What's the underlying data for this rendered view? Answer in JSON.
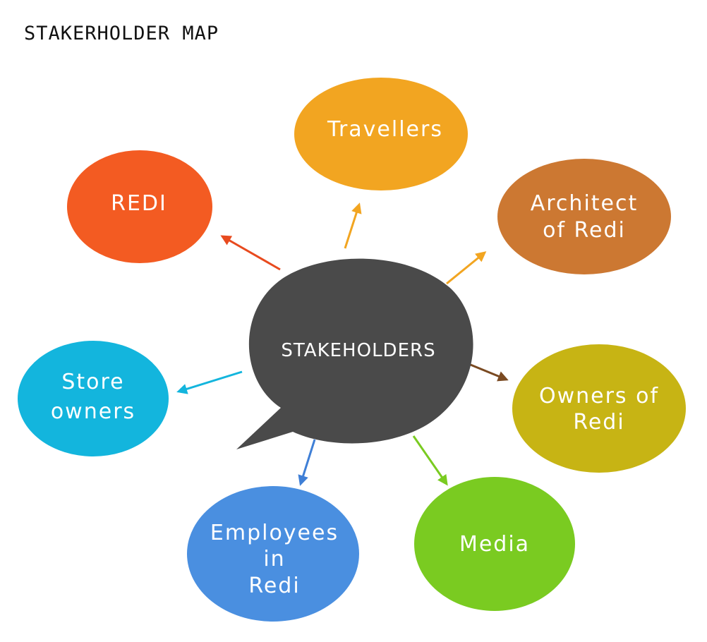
{
  "title": "STAKERHOLDER MAP",
  "center": {
    "label": "STAKEHOLDERS",
    "color": "#4a4a4a"
  },
  "nodes": [
    {
      "id": "travellers",
      "lines": [
        "Travellers"
      ],
      "color": "#f2a521"
    },
    {
      "id": "redi",
      "lines": [
        "REDI"
      ],
      "color": "#f35b22"
    },
    {
      "id": "architect",
      "lines": [
        "Architect",
        "of Redi"
      ],
      "color": "#cc7832"
    },
    {
      "id": "store-owners",
      "lines": [
        "Store",
        "owners"
      ],
      "color": "#13b5dd"
    },
    {
      "id": "owners-redi",
      "lines": [
        "Owners of",
        "Redi"
      ],
      "color": "#c7b414"
    },
    {
      "id": "employees",
      "lines": [
        "Employees",
        "in",
        "Redi"
      ],
      "color": "#4a8fe0"
    },
    {
      "id": "media",
      "lines": [
        "Media"
      ],
      "color": "#7acb21"
    }
  ]
}
